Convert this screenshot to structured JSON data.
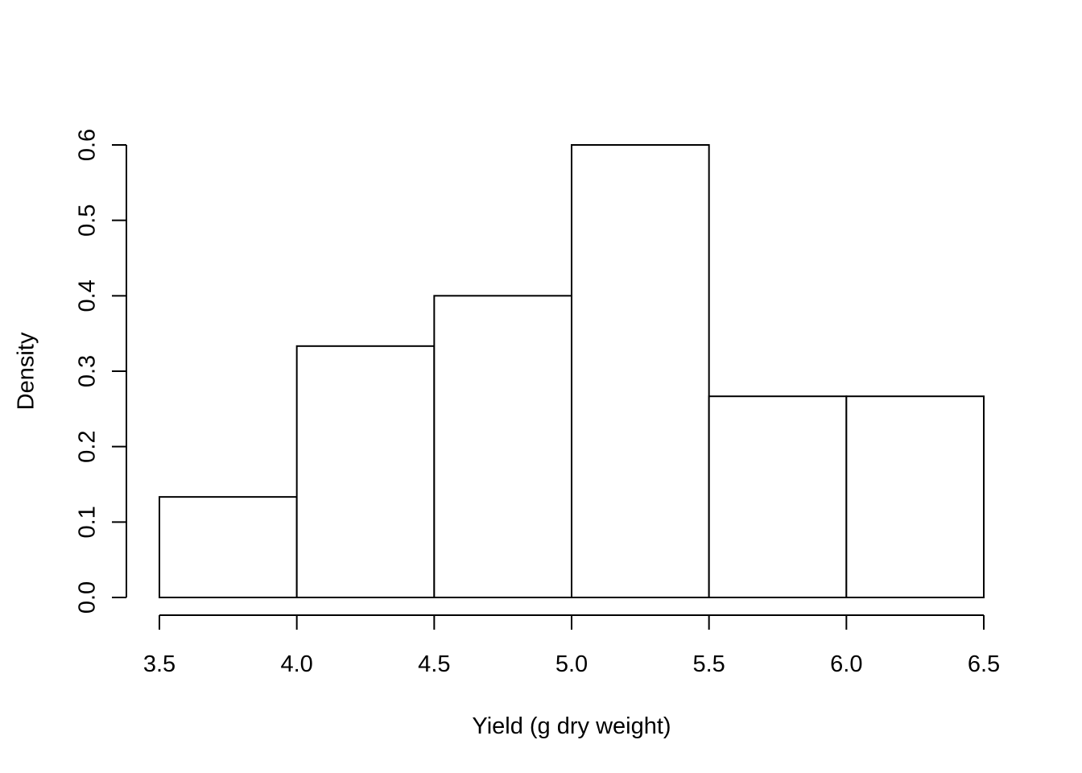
{
  "chart_data": {
    "type": "bar",
    "title": "",
    "xlabel": "Yield (g dry weight)",
    "ylabel": "Density",
    "bins": [
      {
        "start": 3.5,
        "end": 4.0,
        "value": 0.1333
      },
      {
        "start": 4.0,
        "end": 4.5,
        "value": 0.3333
      },
      {
        "start": 4.5,
        "end": 5.0,
        "value": 0.4
      },
      {
        "start": 5.0,
        "end": 5.5,
        "value": 0.6
      },
      {
        "start": 5.5,
        "end": 6.0,
        "value": 0.2667
      },
      {
        "start": 6.0,
        "end": 6.5,
        "value": 0.2667
      }
    ],
    "xlim": [
      3.5,
      6.5
    ],
    "ylim": [
      0,
      0.6
    ],
    "xticks": [
      "3.5",
      "4.0",
      "4.5",
      "5.0",
      "5.5",
      "6.0",
      "6.5"
    ],
    "yticks": [
      "0.0",
      "0.1",
      "0.2",
      "0.3",
      "0.4",
      "0.5",
      "0.6"
    ],
    "grid": false,
    "legend": "none"
  }
}
